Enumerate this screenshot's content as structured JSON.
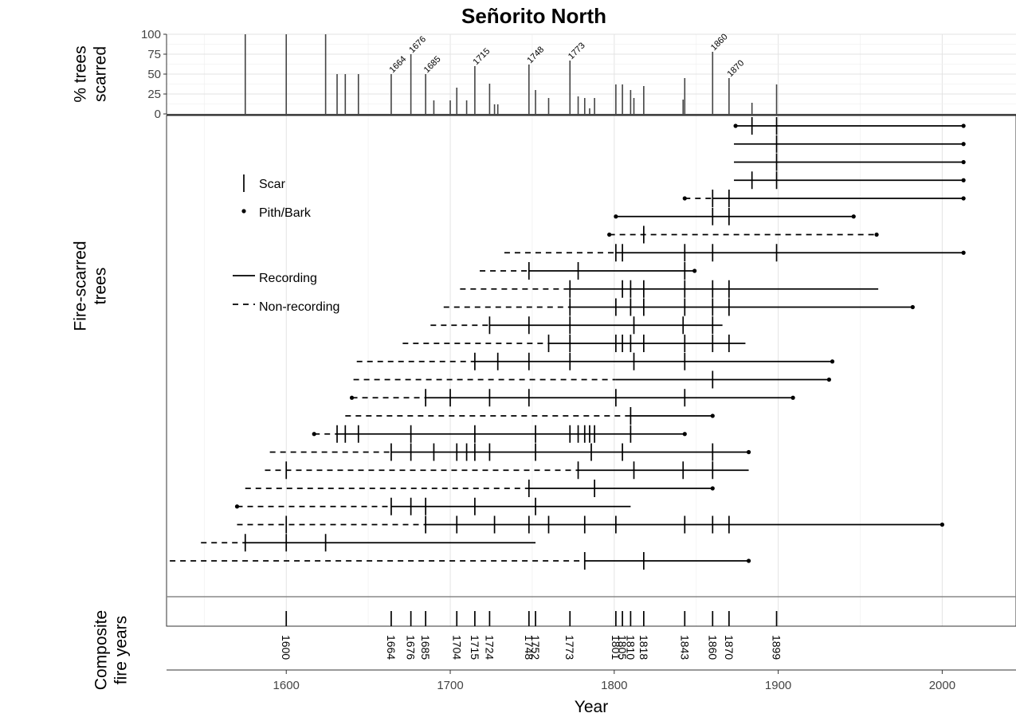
{
  "chart_data": {
    "type": "fire-history",
    "title": "Señorito North",
    "xlabel": "Year",
    "xlim": [
      1527,
      2045
    ],
    "x_ticks": [
      1600,
      1700,
      1800,
      1900,
      2000
    ],
    "top_panel": {
      "ylabel_lines": [
        "% trees",
        "scarred"
      ],
      "ylim": [
        0,
        100
      ],
      "y_ticks": [
        0,
        25,
        50,
        75,
        100
      ],
      "bars": [
        {
          "year": 1575,
          "pct": 100
        },
        {
          "year": 1600,
          "pct": 100
        },
        {
          "year": 1624,
          "pct": 100
        },
        {
          "year": 1631,
          "pct": 50
        },
        {
          "year": 1636,
          "pct": 50
        },
        {
          "year": 1644,
          "pct": 50
        },
        {
          "year": 1664,
          "pct": 50
        },
        {
          "year": 1676,
          "pct": 75
        },
        {
          "year": 1685,
          "pct": 50
        },
        {
          "year": 1690,
          "pct": 17
        },
        {
          "year": 1700,
          "pct": 17
        },
        {
          "year": 1704,
          "pct": 33
        },
        {
          "year": 1710,
          "pct": 17
        },
        {
          "year": 1715,
          "pct": 60
        },
        {
          "year": 1724,
          "pct": 38
        },
        {
          "year": 1727,
          "pct": 12
        },
        {
          "year": 1729,
          "pct": 12
        },
        {
          "year": 1748,
          "pct": 62
        },
        {
          "year": 1752,
          "pct": 30
        },
        {
          "year": 1760,
          "pct": 20
        },
        {
          "year": 1773,
          "pct": 67
        },
        {
          "year": 1778,
          "pct": 22
        },
        {
          "year": 1782,
          "pct": 20
        },
        {
          "year": 1785,
          "pct": 7
        },
        {
          "year": 1788,
          "pct": 20
        },
        {
          "year": 1801,
          "pct": 37
        },
        {
          "year": 1805,
          "pct": 37
        },
        {
          "year": 1810,
          "pct": 30
        },
        {
          "year": 1812,
          "pct": 20
        },
        {
          "year": 1818,
          "pct": 35
        },
        {
          "year": 1842,
          "pct": 18
        },
        {
          "year": 1843,
          "pct": 45
        },
        {
          "year": 1860,
          "pct": 78
        },
        {
          "year": 1870,
          "pct": 45
        },
        {
          "year": 1884,
          "pct": 14
        },
        {
          "year": 1899,
          "pct": 37
        }
      ],
      "peak_labels": [
        {
          "year": 1664,
          "text": "1664"
        },
        {
          "year": 1676,
          "text": "1676"
        },
        {
          "year": 1685,
          "text": "1685"
        },
        {
          "year": 1715,
          "text": "1715"
        },
        {
          "year": 1748,
          "text": "1748"
        },
        {
          "year": 1773,
          "text": "1773"
        },
        {
          "year": 1860,
          "text": "1860"
        },
        {
          "year": 1870,
          "text": "1870"
        }
      ]
    },
    "middle_panel": {
      "ylabel_lines": [
        "Fire-scarred",
        "trees"
      ],
      "trees": [
        {
          "nonrec": [],
          "rec": [
            [
              1874,
              2013
            ]
          ],
          "scars": [
            1884,
            1899
          ],
          "ends": [
            1874,
            2013
          ]
        },
        {
          "nonrec": [],
          "rec": [
            [
              1873,
              2013
            ]
          ],
          "scars": [
            1899
          ],
          "ends": [
            2013
          ]
        },
        {
          "nonrec": [],
          "rec": [
            [
              1873,
              2013
            ]
          ],
          "scars": [
            1899
          ],
          "ends": [
            2013
          ]
        },
        {
          "nonrec": [],
          "rec": [
            [
              1873,
              2013
            ]
          ],
          "scars": [
            1884,
            1899
          ],
          "ends": [
            2013
          ]
        },
        {
          "nonrec": [
            [
              1843,
              1860
            ]
          ],
          "rec": [
            [
              1860,
              2013
            ]
          ],
          "scars": [
            1860,
            1870
          ],
          "ends": [
            1843,
            2013
          ]
        },
        {
          "nonrec": [],
          "rec": [
            [
              1801,
              1946
            ]
          ],
          "scars": [
            1860,
            1870
          ],
          "ends": [
            1801,
            1946
          ]
        },
        {
          "nonrec": [
            [
              1797,
              1960
            ]
          ],
          "rec": [],
          "scars": [
            1818
          ],
          "ends": [
            1797,
            1960
          ]
        },
        {
          "nonrec": [
            [
              1733,
              1801
            ]
          ],
          "rec": [
            [
              1801,
              2013
            ]
          ],
          "scars": [
            1801,
            1805,
            1843,
            1860,
            1899
          ],
          "ends": [
            2013
          ]
        },
        {
          "nonrec": [
            [
              1718,
              1748
            ]
          ],
          "rec": [
            [
              1748,
              1849
            ]
          ],
          "scars": [
            1748,
            1778,
            1843
          ],
          "ends": [
            1849
          ]
        },
        {
          "nonrec": [
            [
              1706,
              1773
            ]
          ],
          "rec": [
            [
              1773,
              1961
            ]
          ],
          "scars": [
            1773,
            1805,
            1810,
            1818,
            1843,
            1860,
            1870
          ],
          "ends": []
        },
        {
          "nonrec": [
            [
              1696,
              1773
            ]
          ],
          "rec": [
            [
              1773,
              1982
            ]
          ],
          "scars": [
            1773,
            1801,
            1810,
            1818,
            1843,
            1860,
            1870
          ],
          "ends": [
            1982
          ]
        },
        {
          "nonrec": [
            [
              1688,
              1724
            ]
          ],
          "rec": [
            [
              1724,
              1866
            ]
          ],
          "scars": [
            1724,
            1748,
            1773,
            1812,
            1842,
            1860
          ],
          "ends": []
        },
        {
          "nonrec": [
            [
              1671,
              1760
            ]
          ],
          "rec": [
            [
              1760,
              1880
            ]
          ],
          "scars": [
            1760,
            1773,
            1801,
            1805,
            1810,
            1818,
            1843,
            1860,
            1870
          ],
          "ends": []
        },
        {
          "nonrec": [
            [
              1643,
              1715
            ]
          ],
          "rec": [
            [
              1715,
              1933
            ]
          ],
          "scars": [
            1715,
            1729,
            1748,
            1773,
            1812,
            1843
          ],
          "ends": [
            1933
          ]
        },
        {
          "nonrec": [
            [
              1641,
              1801
            ]
          ],
          "rec": [
            [
              1801,
              1931
            ]
          ],
          "scars": [
            1860
          ],
          "ends": [
            1931
          ]
        },
        {
          "nonrec": [
            [
              1640,
              1685
            ]
          ],
          "rec": [
            [
              1685,
              1909
            ]
          ],
          "scars": [
            1685,
            1700,
            1724,
            1748,
            1801,
            1843
          ],
          "ends": [
            1640,
            1909
          ]
        },
        {
          "nonrec": [
            [
              1636,
              1810
            ]
          ],
          "rec": [
            [
              1810,
              1860
            ]
          ],
          "scars": [
            1810
          ],
          "ends": [
            1860
          ]
        },
        {
          "nonrec": [
            [
              1617,
              1631
            ]
          ],
          "rec": [
            [
              1631,
              1843
            ]
          ],
          "scars": [
            1631,
            1636,
            1644,
            1676,
            1715,
            1752,
            1773,
            1778,
            1782,
            1785,
            1788,
            1810
          ],
          "ends": [
            1617,
            1843
          ]
        },
        {
          "nonrec": [
            [
              1590,
              1664
            ]
          ],
          "rec": [
            [
              1664,
              1882
            ]
          ],
          "scars": [
            1664,
            1676,
            1690,
            1704,
            1710,
            1715,
            1724,
            1752,
            1786,
            1805,
            1860
          ],
          "ends": [
            1882
          ]
        },
        {
          "nonrec": [
            [
              1587,
              1778
            ]
          ],
          "rec": [
            [
              1778,
              1882
            ]
          ],
          "scars": [
            1600,
            1778,
            1812,
            1842,
            1860
          ],
          "ends": []
        },
        {
          "nonrec": [
            [
              1575,
              1748
            ]
          ],
          "rec": [
            [
              1748,
              1860
            ]
          ],
          "scars": [
            1748,
            1788
          ],
          "ends": [
            1860
          ]
        },
        {
          "nonrec": [
            [
              1570,
              1664
            ]
          ],
          "rec": [
            [
              1664,
              1810
            ]
          ],
          "scars": [
            1664,
            1676,
            1685,
            1715,
            1752
          ],
          "ends": [
            1570
          ]
        },
        {
          "nonrec": [
            [
              1570,
              1685
            ]
          ],
          "rec": [
            [
              1685,
              2000
            ]
          ],
          "scars": [
            1600,
            1685,
            1704,
            1727,
            1748,
            1760,
            1782,
            1801,
            1843,
            1860,
            1870
          ],
          "ends": [
            2000
          ]
        },
        {
          "nonrec": [
            [
              1548,
              1575
            ]
          ],
          "rec": [
            [
              1575,
              1752
            ]
          ],
          "scars": [
            1575,
            1600,
            1624
          ],
          "ends": []
        },
        {
          "nonrec": [
            [
              1529,
              1782
            ]
          ],
          "rec": [
            [
              1782,
              1882
            ]
          ],
          "scars": [
            1782,
            1818
          ],
          "ends": [
            1882
          ]
        }
      ],
      "legend": {
        "scar": "Scar",
        "pith_bark": "Pith/Bark",
        "recording": "Recording",
        "non_recording": "Non-recording",
        "placement": "top-left"
      }
    },
    "bottom_panel": {
      "ylabel_lines": [
        "Composite",
        "fire years"
      ],
      "composite_years": [
        1600,
        1664,
        1676,
        1685,
        1704,
        1715,
        1724,
        1748,
        1752,
        1773,
        1801,
        1805,
        1810,
        1818,
        1843,
        1860,
        1870,
        1899
      ],
      "composite_labels": [
        "1600",
        "1664",
        "1676",
        "1685",
        "1704",
        "1715",
        "1724",
        "1748",
        "1752",
        "1773",
        "1801",
        "1805",
        "1810",
        "1818",
        "1843",
        "1860",
        "1870",
        "1899"
      ]
    },
    "grid": true
  }
}
